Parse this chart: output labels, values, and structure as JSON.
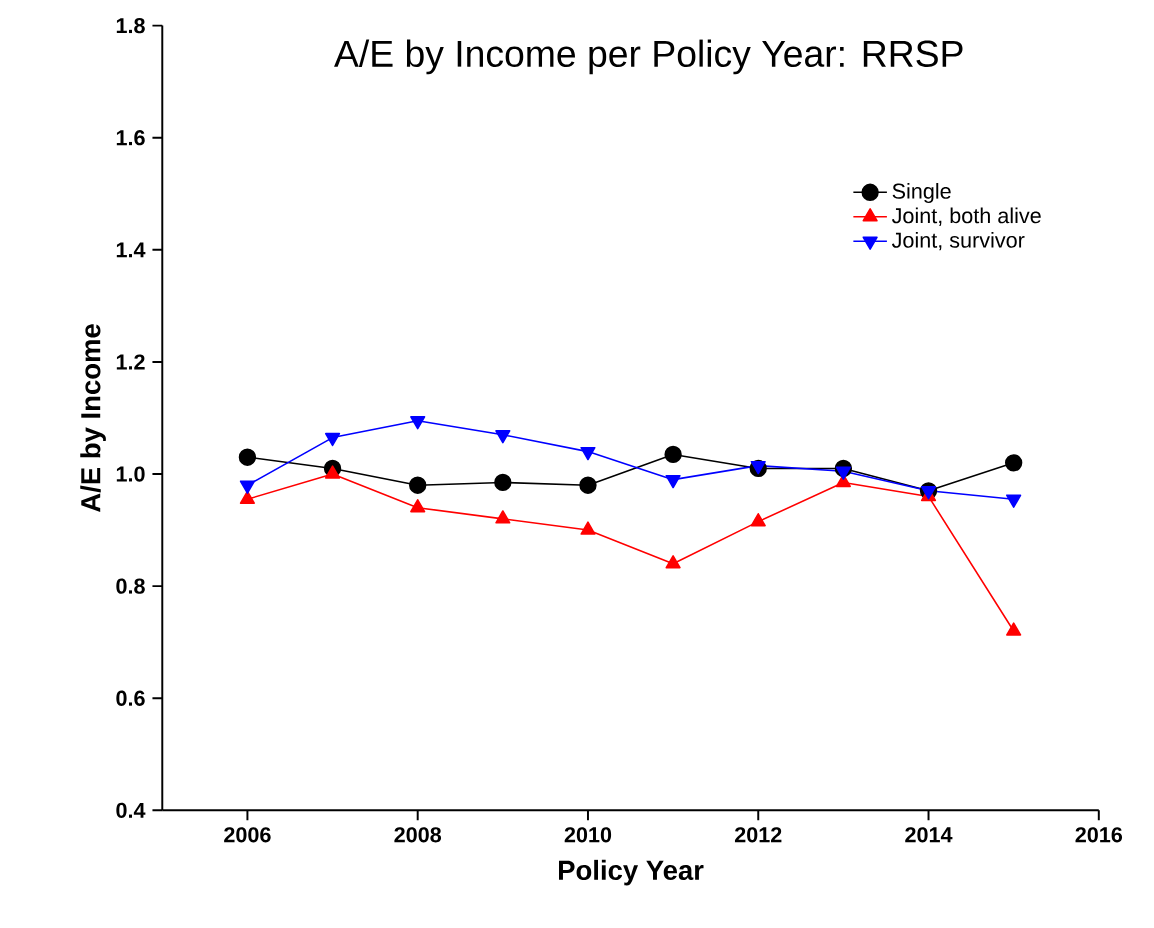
{
  "chart_data": {
    "type": "line",
    "title": "A/E by Income per Policy Year: RRSP",
    "xlabel": "Policy Year",
    "ylabel": "A/E by Income",
    "x": [
      2006,
      2007,
      2008,
      2009,
      2010,
      2011,
      2012,
      2013,
      2014,
      2015
    ],
    "series": [
      {
        "name": "Single",
        "color": "#000000",
        "marker": "circle",
        "values": [
          1.03,
          1.01,
          0.98,
          0.985,
          0.98,
          1.035,
          1.01,
          1.01,
          0.97,
          1.02
        ]
      },
      {
        "name": "Joint, both alive",
        "color": "#ff0000",
        "marker": "triangle",
        "values": [
          0.955,
          1.0,
          0.94,
          0.92,
          0.9,
          0.84,
          0.915,
          0.985,
          0.96,
          0.72
        ]
      },
      {
        "name": "Joint, survivor",
        "color": "#0000ff",
        "marker": "triangle-down",
        "values": [
          0.98,
          1.065,
          1.095,
          1.07,
          1.04,
          0.99,
          1.015,
          1.005,
          0.97,
          0.955
        ]
      }
    ],
    "xlim": [
      2005,
      2016
    ],
    "xticks": [
      2006,
      2008,
      2010,
      2012,
      2014,
      2016
    ],
    "ylim": [
      0.4,
      1.8
    ],
    "yticks": [
      0.4,
      0.6,
      0.8,
      {
        "value": 1,
        "label": "1.0"
      },
      1.2,
      1.4,
      1.6,
      1.8
    ],
    "grid": false,
    "legend": "top right",
    "line_style": "solid"
  }
}
